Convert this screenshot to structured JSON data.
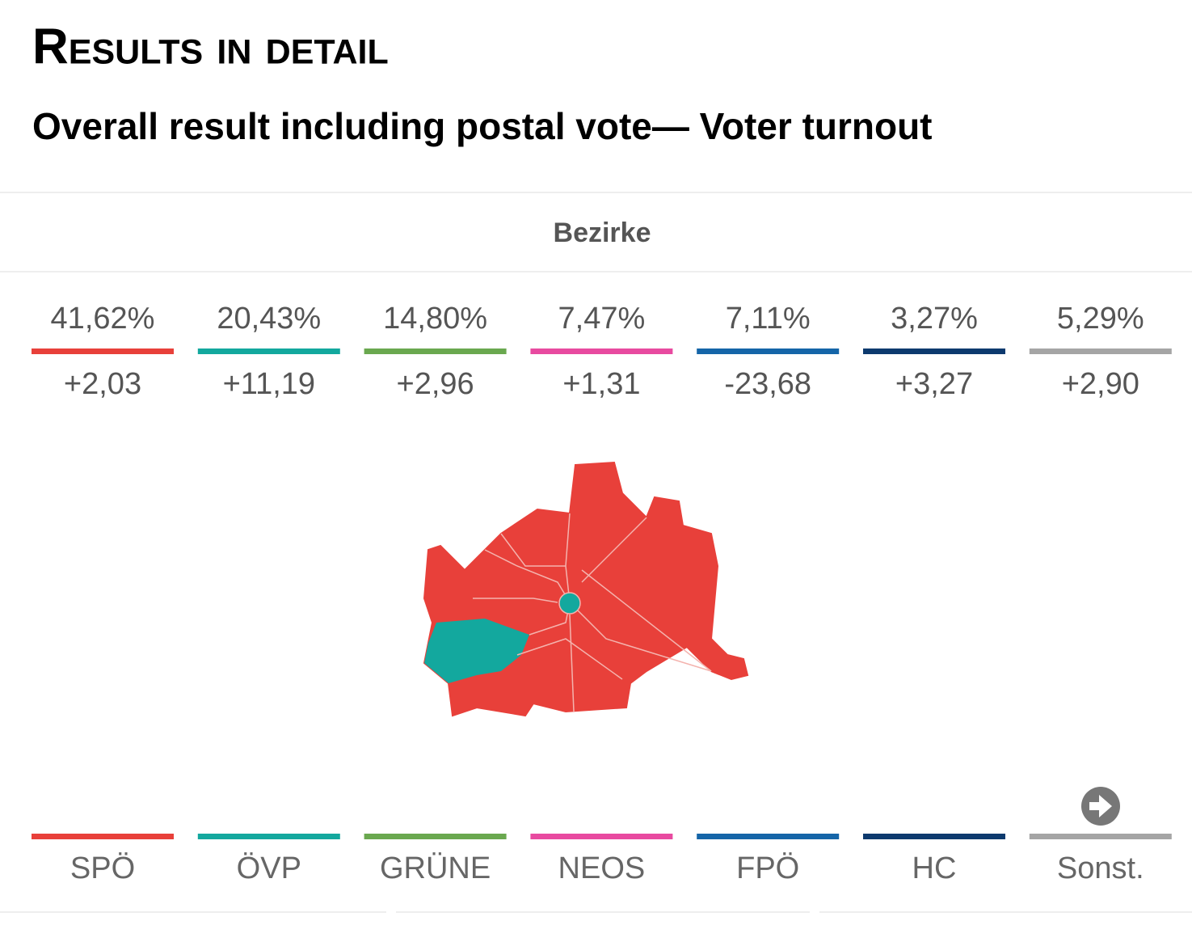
{
  "header": {
    "title": "Results in detail",
    "subtitle": "Overall result including postal vote— Voter turnout"
  },
  "tab": {
    "label": "Bezirke"
  },
  "parties": [
    {
      "name": "SPÖ",
      "share": "41,62%",
      "change": "+2,03",
      "color": "#e8403a"
    },
    {
      "name": "ÖVP",
      "share": "20,43%",
      "change": "+11,19",
      "color": "#13a89e"
    },
    {
      "name": "GRÜNE",
      "share": "14,80%",
      "change": "+2,96",
      "color": "#6aa84f"
    },
    {
      "name": "NEOS",
      "share": "7,47%",
      "change": "+1,31",
      "color": "#e84aa0"
    },
    {
      "name": "FPÖ",
      "share": "7,11%",
      "change": "-23,68",
      "color": "#1565a8"
    },
    {
      "name": "HC",
      "share": "3,27%",
      "change": "+3,27",
      "color": "#0d3a6e"
    },
    {
      "name": "Sonst.",
      "share": "5,29%",
      "change": "+2,90",
      "color": "#a5a5a5"
    }
  ]
}
